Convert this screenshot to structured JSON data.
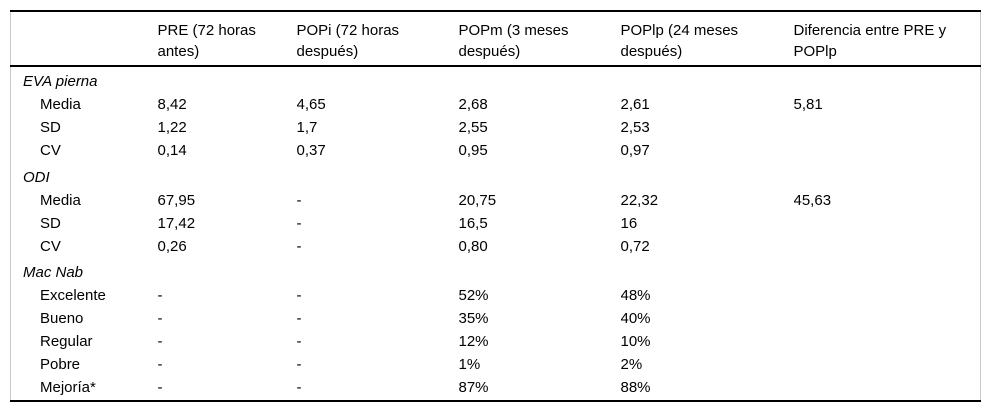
{
  "page": {
    "background": "#ffffff"
  },
  "colors": {
    "text": "#000000",
    "horizontal_rule": "#000000",
    "side_rule": "#c9c9c9"
  },
  "table": {
    "columns": [
      "",
      "PRE (72 horas antes)",
      "POPi (72 horas después)",
      "POPm (3 meses después)",
      "POPlp (24 meses después)",
      "Diferencia entre PRE y POPlp"
    ],
    "sections": [
      {
        "label": "EVA pierna",
        "rows": [
          {
            "label": "Media",
            "values": [
              "8,42",
              "4,65",
              "2,68",
              "2,61",
              "5,81"
            ]
          },
          {
            "label": "SD",
            "values": [
              "1,22",
              "1,7",
              "2,55",
              "2,53",
              ""
            ]
          },
          {
            "label": "CV",
            "values": [
              "0,14",
              "0,37",
              "0,95",
              "0,97",
              ""
            ]
          }
        ]
      },
      {
        "label": "ODI",
        "rows": [
          {
            "label": "Media",
            "values": [
              "67,95",
              "-",
              "20,75",
              "22,32",
              "45,63"
            ]
          },
          {
            "label": "SD",
            "values": [
              "17,42",
              "-",
              "16,5",
              "16",
              ""
            ]
          },
          {
            "label": "CV",
            "values": [
              "0,26",
              "-",
              "0,80",
              "0,72",
              ""
            ]
          }
        ]
      },
      {
        "label": "Mac Nab",
        "rows": [
          {
            "label": "Excelente",
            "values": [
              "-",
              "-",
              "52%",
              "48%",
              ""
            ]
          },
          {
            "label": "Bueno",
            "values": [
              "-",
              "-",
              "35%",
              "40%",
              ""
            ]
          },
          {
            "label": "Regular",
            "values": [
              "-",
              "-",
              "12%",
              "10%",
              ""
            ]
          },
          {
            "label": "Pobre",
            "values": [
              "-",
              "-",
              "1%",
              "2%",
              ""
            ]
          },
          {
            "label": "Mejoría*",
            "values": [
              "-",
              "-",
              "87%",
              "88%",
              ""
            ]
          }
        ]
      }
    ]
  }
}
